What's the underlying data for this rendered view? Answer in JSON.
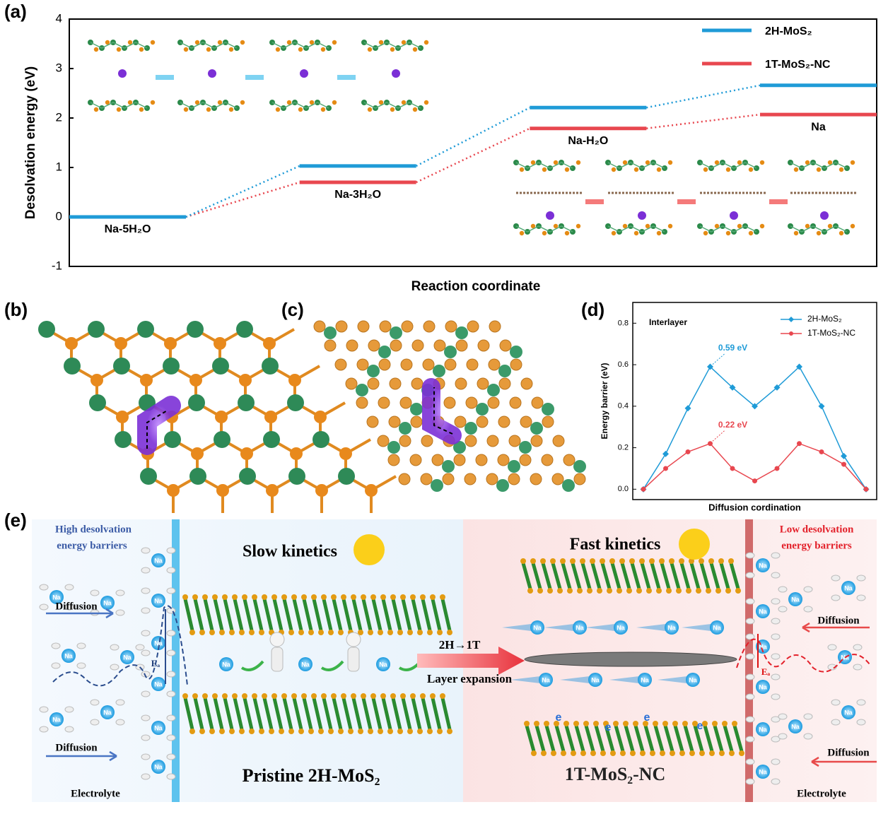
{
  "chart_data": [
    {
      "type": "levels",
      "panel_label": "(a)",
      "ylabel": "Desolvation energy (eV)",
      "xlabel": "Reaction coordinate",
      "categories": [
        "Na-5H₂O",
        "Na-3H₂O",
        "Na-H₂O",
        "Na"
      ],
      "series": [
        {
          "name": "2H-MoS₂",
          "color": "#1f9bd7",
          "values": [
            0,
            1.03,
            2.21,
            2.66
          ]
        },
        {
          "name": "1T-MoS₂-NC",
          "color": "#e8474f",
          "values": [
            0,
            0.7,
            1.79,
            2.07
          ]
        }
      ],
      "ylim": [
        -1,
        4
      ],
      "yticks": [
        -1,
        0,
        1,
        2,
        3,
        4
      ],
      "legend": "top-right"
    },
    {
      "type": "line",
      "panel_label": "(d)",
      "ylabel": "Energy barrier (eV)",
      "xlabel": "Diffusion cordination",
      "annotation": "Interlayer",
      "series": [
        {
          "name": "2H-MoS₂",
          "color": "#1f9bd7",
          "marker": "diamond",
          "values": [
            0,
            0.17,
            0.39,
            0.59,
            0.49,
            0.4,
            0.49,
            0.59,
            0.4,
            0.16,
            0
          ],
          "peak_label": {
            "index": 3,
            "text": "0.59 eV"
          }
        },
        {
          "name": "1T-MoS₂-NC",
          "color": "#e8474f",
          "marker": "circle",
          "values": [
            0,
            0.1,
            0.18,
            0.22,
            0.1,
            0.04,
            0.1,
            0.22,
            0.18,
            0.12,
            0
          ],
          "peak_label": {
            "index": 3,
            "text": "0.22 eV"
          }
        }
      ],
      "ylim": [
        -0.05,
        0.9
      ],
      "yticks": [
        {
          "value": 0,
          "label": "0.0"
        },
        {
          "value": 0.2,
          "label": "0.2"
        },
        {
          "value": 0.4,
          "label": "0.4"
        },
        {
          "value": 0.6,
          "label": "0.6"
        },
        {
          "value": 0.8,
          "label": "0.8"
        }
      ],
      "legend": "top-right"
    }
  ],
  "panel_labels": {
    "b": "(b)",
    "c": "(c)",
    "e": "(e)"
  },
  "panel_e": {
    "left_title": [
      "High desolvation",
      "energy barriers"
    ],
    "right_title": [
      "Low desolvation",
      "energy barriers"
    ],
    "slow": "Slow kinetics",
    "fast": "Fast kinetics",
    "diffusion": "Diffusion",
    "ea": "Eₐ",
    "ion": "Na",
    "electron": "e",
    "electrolyte": "Electrolyte",
    "pristine": "Pristine 2H-MoS₂",
    "transform": "2H→1T",
    "expansion": "Layer expansion",
    "product": "1T-MoS₂-NC"
  }
}
